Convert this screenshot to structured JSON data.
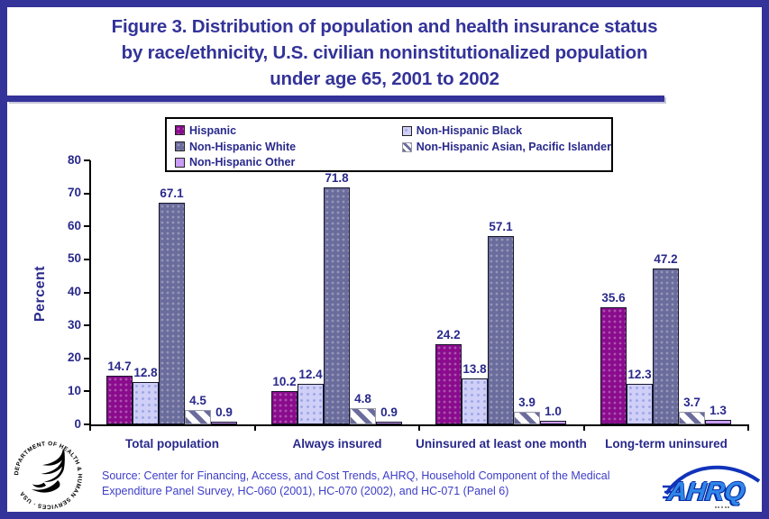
{
  "header": {
    "title_lines": [
      "Figure 3. Distribution of population and health insurance status",
      "by race/ethnicity, U.S. civilian noninstitutionalized population",
      "under age 65, 2001 to 2002"
    ]
  },
  "chart_data": {
    "type": "bar",
    "title": "Figure 3. Distribution of population and health insurance status by race/ethnicity, U.S. civilian noninstitutionalized population under age 65, 2001 to 2002",
    "xlabel": "",
    "ylabel": "Percent",
    "ylim": [
      0,
      80
    ],
    "yticks": [
      0,
      10,
      20,
      30,
      40,
      50,
      60,
      70,
      80
    ],
    "grid": false,
    "legend_position": "top-center",
    "value_labels": "one-decimal",
    "categories": [
      "Total population",
      "Always insured",
      "Uninsured at least one month",
      "Long-term uninsured"
    ],
    "series": [
      {
        "name": "Hispanic",
        "color": "#8A0B8D",
        "pattern": "speckle-light",
        "values": [
          14.7,
          10.2,
          24.2,
          35.6
        ]
      },
      {
        "name": "Non-Hispanic Black",
        "color": "#CFCFF7",
        "pattern": "speckle-dark",
        "values": [
          12.8,
          12.4,
          13.8,
          12.3
        ]
      },
      {
        "name": "Non-Hispanic White",
        "color": "#6A6C9C",
        "pattern": "speckle-light",
        "values": [
          67.1,
          71.8,
          57.1,
          47.2
        ]
      },
      {
        "name": "Non-Hispanic Asian, Pacific Islander",
        "color": "#6A6C9C",
        "pattern": "diagonal-stripes",
        "values": [
          4.5,
          4.8,
          3.9,
          3.7
        ]
      },
      {
        "name": "Non-Hispanic Other",
        "color": "#C99CF5",
        "pattern": "solid",
        "values": [
          0.9,
          0.9,
          1.0,
          1.3
        ]
      }
    ]
  },
  "footer": {
    "source_lines": [
      "Source: Center for Financing, Access, and Cost Trends, AHRQ, Household Component of the Medical",
      "Expenditure Panel Survey, HC-060 (2001), HC-070 (2002), and HC-071 (Panel 6)"
    ],
    "hhs_seal_text": "DEPARTMENT OF HEALTH & HUMAN SERVICES · USA",
    "ahrq_wordmark": "AHRQ"
  },
  "colors": {
    "frame_border": "#333399",
    "title_text": "#333399",
    "chart_text": "#29298C",
    "source_text": "#3D3DC8",
    "axis": "#000000",
    "ahrq_blue": "#2F86E8",
    "ahrq_dark_blue": "#0A2FA6"
  }
}
